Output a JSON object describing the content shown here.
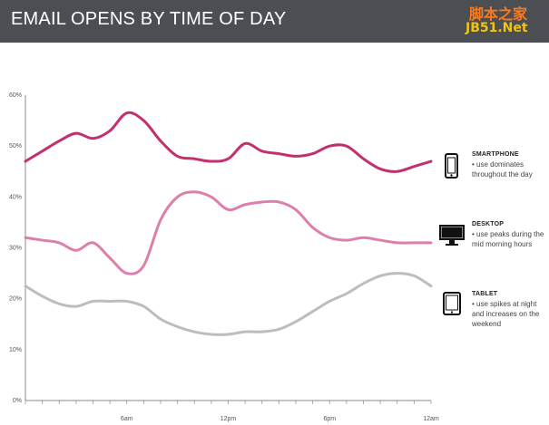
{
  "header": {
    "title": "EMAIL OPENS BY TIME OF DAY"
  },
  "watermark": {
    "line1": "脚本之家",
    "line2": "JB51.Net"
  },
  "colors": {
    "smartphone": "#c2306f",
    "desktop": "#dd7fab",
    "tablet": "#bdbdbd",
    "header_bg": "#4b4f54"
  },
  "legend": [
    {
      "icon": "smartphone-icon",
      "title": "SMARTPHONE",
      "desc": "• use dominates throughout the day"
    },
    {
      "icon": "desktop-icon",
      "title": "DESKTOP",
      "desc": "• use peaks during the mid morning hours"
    },
    {
      "icon": "tablet-icon",
      "title": "TABLET",
      "desc": "• use spikes at night and increases on the weekend"
    }
  ],
  "chart_data": {
    "type": "line",
    "title": "EMAIL OPENS BY TIME OF DAY",
    "xlabel": "",
    "ylabel": "",
    "xlim": [
      0,
      24
    ],
    "ylim": [
      0,
      60
    ],
    "grid": false,
    "legend_position": "right",
    "x_ticks": [
      {
        "value": 6,
        "label": "6am"
      },
      {
        "value": 12,
        "label": "12pm"
      },
      {
        "value": 18,
        "label": "6pm"
      },
      {
        "value": 24,
        "label": "12am"
      }
    ],
    "y_ticks": [
      {
        "value": 0,
        "label": "0%"
      },
      {
        "value": 10,
        "label": "10%"
      },
      {
        "value": 20,
        "label": "20%"
      },
      {
        "value": 30,
        "label": "30%"
      },
      {
        "value": 40,
        "label": "40%"
      },
      {
        "value": 50,
        "label": "50%"
      },
      {
        "value": 60,
        "label": "60%"
      }
    ],
    "x": [
      0,
      1,
      2,
      3,
      4,
      5,
      6,
      7,
      8,
      9,
      10,
      11,
      12,
      13,
      14,
      15,
      16,
      17,
      18,
      19,
      20,
      21,
      22,
      23,
      24
    ],
    "series": [
      {
        "name": "SMARTPHONE",
        "values": [
          47,
          49,
          51,
          52.5,
          51.5,
          53,
          56.5,
          55,
          51,
          48,
          47.5,
          47,
          47.5,
          50.5,
          49,
          48.5,
          48,
          48.5,
          50,
          50,
          47.5,
          45.5,
          45,
          46,
          47
        ]
      },
      {
        "name": "DESKTOP",
        "values": [
          32,
          31.5,
          31,
          29.5,
          31,
          28,
          25,
          26.5,
          35.5,
          40,
          41,
          40,
          37.5,
          38.5,
          39,
          39,
          37.5,
          34,
          32,
          31.5,
          32,
          31.5,
          31,
          31,
          31
        ]
      },
      {
        "name": "TABLET",
        "values": [
          22.5,
          20.5,
          19,
          18.5,
          19.5,
          19.5,
          19.5,
          18.5,
          16,
          14.5,
          13.5,
          13,
          13,
          13.5,
          13.5,
          14,
          15.5,
          17.5,
          19.5,
          21,
          23,
          24.5,
          25,
          24.5,
          22.5
        ]
      }
    ]
  }
}
